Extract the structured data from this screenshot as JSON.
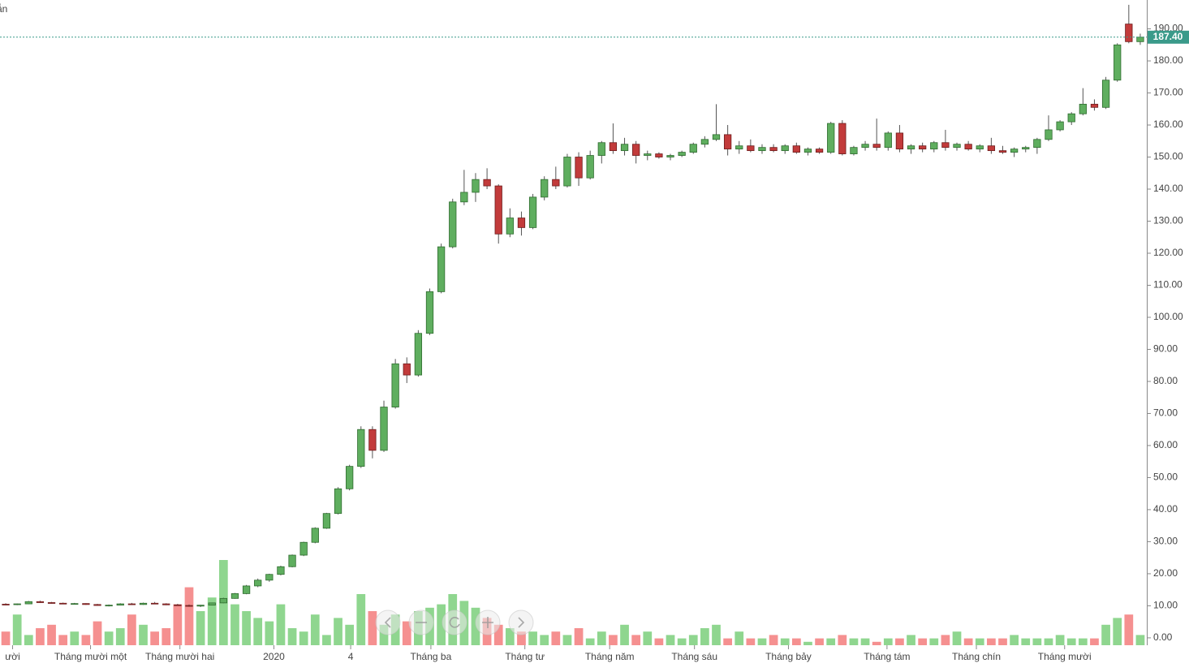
{
  "chart_data": {
    "type": "candlestick",
    "annotation": "ẫn",
    "xlim": [
      -0.5,
      99.5
    ],
    "ylim": [
      -2.3,
      199
    ],
    "vlim": [
      0,
      25
    ],
    "xticks": [
      {
        "value": 0.6,
        "label": "ười"
      },
      {
        "value": 7.4,
        "label": "Tháng mười một"
      },
      {
        "value": 15.2,
        "label": "Tháng mười hai"
      },
      {
        "value": 23.4,
        "label": "2020"
      },
      {
        "value": 30.1,
        "label": "4"
      },
      {
        "value": 37.1,
        "label": "Tháng ba"
      },
      {
        "value": 45.3,
        "label": "Tháng tư"
      },
      {
        "value": 52.7,
        "label": "Tháng năm"
      },
      {
        "value": 60.1,
        "label": "Tháng sáu"
      },
      {
        "value": 68.3,
        "label": "Tháng bảy"
      },
      {
        "value": 76.9,
        "label": "Tháng tám"
      },
      {
        "value": 84.7,
        "label": "Tháng chín"
      },
      {
        "value": 92.4,
        "label": "Tháng mười"
      }
    ],
    "yticks": [
      {
        "value": 0,
        "label": "0.00"
      },
      {
        "value": 10,
        "label": "10.00"
      },
      {
        "value": 20,
        "label": "20.00"
      },
      {
        "value": 30,
        "label": "30.00"
      },
      {
        "value": 40,
        "label": "40.00"
      },
      {
        "value": 50,
        "label": "50.00"
      },
      {
        "value": 60,
        "label": "60.00"
      },
      {
        "value": 70,
        "label": "70.00"
      },
      {
        "value": 80,
        "label": "80.00"
      },
      {
        "value": 90,
        "label": "90.00"
      },
      {
        "value": 100,
        "label": "100.00"
      },
      {
        "value": 110,
        "label": "110.00"
      },
      {
        "value": 120,
        "label": "120.00"
      },
      {
        "value": 130,
        "label": "130.00"
      },
      {
        "value": 140,
        "label": "140.00"
      },
      {
        "value": 150,
        "label": "150.00"
      },
      {
        "value": 160,
        "label": "160.00"
      },
      {
        "value": 170,
        "label": "170.00"
      },
      {
        "value": 180,
        "label": "180.00"
      },
      {
        "value": 190,
        "label": "190.00"
      }
    ],
    "price_line": {
      "value": 187.4,
      "label": "187.40",
      "color": "#3a9a8a"
    },
    "up_color": "#5fae5f",
    "down_color": "#c23b3b",
    "up_volume_color": "#8fd68f",
    "down_volume_color": "#f59090",
    "ohlc": [
      [
        10.5,
        10.8,
        10.2,
        10.4
      ],
      [
        10.4,
        10.7,
        10.2,
        10.6
      ],
      [
        10.6,
        11.5,
        10.5,
        11.3
      ],
      [
        11.3,
        11.6,
        10.9,
        11.0
      ],
      [
        11.0,
        11.2,
        10.7,
        10.8
      ],
      [
        10.8,
        11.0,
        10.5,
        10.6
      ],
      [
        10.6,
        10.9,
        10.4,
        10.7
      ],
      [
        10.7,
        10.8,
        10.3,
        10.4
      ],
      [
        10.4,
        10.6,
        10.0,
        10.1
      ],
      [
        10.1,
        10.4,
        9.8,
        10.2
      ],
      [
        10.2,
        10.8,
        10.1,
        10.6
      ],
      [
        10.6,
        10.9,
        10.3,
        10.4
      ],
      [
        10.4,
        11.0,
        10.3,
        10.8
      ],
      [
        10.8,
        11.2,
        10.5,
        10.6
      ],
      [
        10.6,
        10.8,
        10.2,
        10.3
      ],
      [
        10.3,
        10.6,
        10.0,
        10.1
      ],
      [
        10.1,
        10.4,
        9.7,
        9.9
      ],
      [
        9.9,
        10.3,
        9.6,
        10.2
      ],
      [
        10.2,
        11.0,
        10.1,
        10.9
      ],
      [
        10.9,
        12.5,
        10.8,
        12.3
      ],
      [
        12.3,
        14.0,
        12.2,
        13.8
      ],
      [
        13.8,
        16.5,
        13.6,
        16.2
      ],
      [
        16.2,
        18.5,
        15.8,
        18.0
      ],
      [
        18.0,
        20.0,
        17.5,
        19.8
      ],
      [
        19.8,
        22.5,
        19.5,
        22.2
      ],
      [
        22.2,
        26.0,
        22.0,
        25.8
      ],
      [
        25.8,
        30.0,
        25.5,
        29.8
      ],
      [
        29.8,
        34.5,
        29.5,
        34.2
      ],
      [
        34.2,
        39.0,
        34.0,
        38.8
      ],
      [
        38.8,
        47.0,
        38.5,
        46.5
      ],
      [
        46.5,
        54.0,
        46.0,
        53.5
      ],
      [
        53.5,
        66.0,
        53.0,
        65.0
      ],
      [
        65.0,
        66.0,
        56.0,
        58.5
      ],
      [
        58.5,
        74.0,
        58.0,
        72.0
      ],
      [
        72.0,
        87.0,
        71.5,
        85.5
      ],
      [
        85.5,
        87.5,
        79.5,
        82.0
      ],
      [
        82.0,
        96.0,
        81.5,
        95.0
      ],
      [
        95.0,
        109.0,
        94.5,
        108.0
      ],
      [
        108.0,
        123.0,
        107.5,
        122.0
      ],
      [
        122.0,
        137.0,
        121.5,
        136.0
      ],
      [
        136.0,
        146.0,
        135.0,
        139.0
      ],
      [
        139.0,
        145.0,
        136.0,
        143.0
      ],
      [
        143.0,
        146.5,
        140.0,
        141.0
      ],
      [
        141.0,
        141.5,
        123.0,
        126.0
      ],
      [
        126.0,
        134.0,
        125.0,
        131.0
      ],
      [
        131.0,
        133.0,
        125.5,
        128.0
      ],
      [
        128.0,
        138.5,
        127.5,
        137.5
      ],
      [
        137.5,
        144.0,
        136.5,
        143.0
      ],
      [
        143.0,
        147.0,
        140.0,
        141.0
      ],
      [
        141.0,
        151.0,
        140.5,
        150.0
      ],
      [
        150.0,
        151.5,
        141.0,
        143.5
      ],
      [
        143.5,
        152.0,
        143.0,
        150.5
      ],
      [
        150.5,
        155.0,
        148.0,
        154.5
      ],
      [
        154.5,
        160.5,
        151.0,
        152.0
      ],
      [
        152.0,
        156.0,
        150.5,
        154.0
      ],
      [
        154.0,
        155.0,
        148.0,
        150.5
      ],
      [
        150.5,
        152.0,
        149.0,
        151.0
      ],
      [
        151.0,
        151.5,
        149.5,
        150.0
      ],
      [
        150.0,
        151.0,
        149.0,
        150.5
      ],
      [
        150.5,
        152.0,
        150.0,
        151.5
      ],
      [
        151.5,
        154.5,
        151.0,
        154.0
      ],
      [
        154.0,
        156.5,
        153.0,
        155.5
      ],
      [
        155.5,
        166.5,
        155.0,
        157.0
      ],
      [
        157.0,
        160.0,
        150.5,
        152.5
      ],
      [
        152.5,
        155.0,
        151.0,
        153.5
      ],
      [
        153.5,
        155.5,
        151.5,
        152.0
      ],
      [
        152.0,
        154.0,
        151.0,
        153.0
      ],
      [
        153.0,
        154.0,
        151.5,
        152.0
      ],
      [
        152.0,
        154.0,
        151.0,
        153.5
      ],
      [
        153.5,
        154.5,
        151.0,
        151.5
      ],
      [
        151.5,
        153.0,
        150.5,
        152.5
      ],
      [
        152.5,
        153.0,
        151.0,
        151.5
      ],
      [
        151.5,
        161.0,
        151.0,
        160.5
      ],
      [
        160.5,
        161.5,
        150.5,
        151.0
      ],
      [
        151.0,
        153.5,
        150.5,
        153.0
      ],
      [
        153.0,
        155.0,
        152.0,
        154.0
      ],
      [
        154.0,
        162.0,
        152.0,
        153.0
      ],
      [
        153.0,
        158.0,
        152.0,
        157.5
      ],
      [
        157.5,
        160.0,
        151.5,
        152.5
      ],
      [
        152.5,
        154.0,
        151.0,
        153.5
      ],
      [
        153.5,
        154.5,
        151.5,
        152.5
      ],
      [
        152.5,
        155.0,
        151.5,
        154.5
      ],
      [
        154.5,
        158.5,
        152.0,
        153.0
      ],
      [
        153.0,
        154.5,
        152.0,
        154.0
      ],
      [
        154.0,
        155.0,
        152.0,
        152.5
      ],
      [
        152.5,
        154.0,
        151.5,
        153.5
      ],
      [
        153.5,
        156.0,
        151.0,
        152.0
      ],
      [
        152.0,
        153.5,
        151.0,
        151.5
      ],
      [
        151.5,
        153.0,
        150.0,
        152.5
      ],
      [
        152.5,
        153.5,
        151.5,
        153.0
      ],
      [
        153.0,
        156.0,
        151.0,
        155.5
      ],
      [
        155.5,
        163.0,
        155.0,
        158.5
      ],
      [
        158.5,
        161.5,
        158.0,
        161.0
      ],
      [
        161.0,
        164.0,
        160.0,
        163.5
      ],
      [
        163.5,
        171.5,
        163.0,
        166.5
      ],
      [
        166.5,
        168.0,
        164.5,
        165.5
      ],
      [
        165.5,
        175.0,
        165.0,
        174.0
      ],
      [
        174.0,
        185.5,
        173.5,
        185.0
      ],
      [
        191.5,
        197.5,
        185.5,
        186.0
      ],
      [
        186.0,
        188.5,
        185.0,
        187.4
      ]
    ],
    "volume": [
      4,
      9,
      3,
      5,
      6,
      3,
      4,
      3,
      7,
      4,
      5,
      9,
      6,
      4,
      5,
      12,
      17,
      10,
      14,
      25,
      12,
      10,
      8,
      7,
      12,
      5,
      4,
      9,
      3,
      8,
      6,
      15,
      10,
      6,
      9,
      7,
      10,
      11,
      12,
      15,
      13,
      11,
      8,
      6,
      5,
      4,
      4,
      3,
      4,
      3,
      5,
      2,
      4,
      3,
      6,
      3,
      4,
      2,
      3,
      2,
      3,
      5,
      6,
      2,
      4,
      2,
      2,
      3,
      2,
      2,
      1,
      2,
      2,
      3,
      2,
      2,
      1,
      2,
      2,
      3,
      2,
      2,
      3,
      4,
      2,
      2,
      2,
      2,
      3,
      2,
      2,
      2,
      3,
      2,
      2,
      2,
      6,
      8,
      9,
      3
    ]
  }
}
